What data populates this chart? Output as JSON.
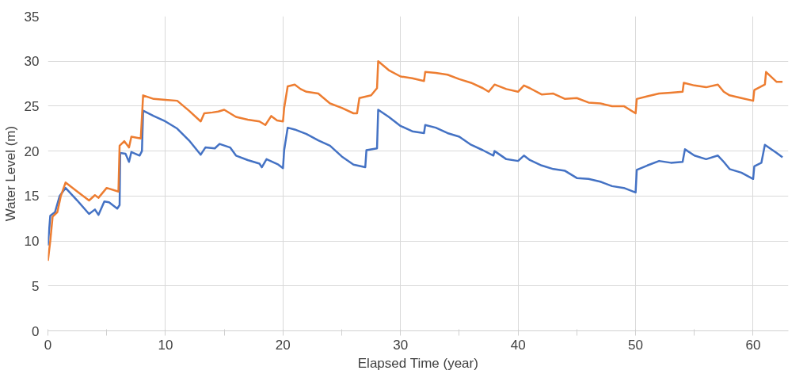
{
  "chart_data": {
    "type": "line",
    "xlabel": "Elapsed Time (year)",
    "ylabel": "Water Level (m)",
    "xlim": [
      0,
      63
    ],
    "ylim": [
      0,
      35
    ],
    "xticks": [
      0,
      {
        "value": 5,
        "label": null
      },
      10,
      {
        "value": 15,
        "label": null
      },
      20,
      {
        "value": 25,
        "label": null
      },
      30,
      {
        "value": 35,
        "label": null
      },
      40,
      {
        "value": 45,
        "label": null
      },
      50,
      {
        "value": 55,
        "label": null
      },
      60
    ],
    "yticks": [
      0,
      5,
      10,
      15,
      20,
      25,
      30,
      35
    ],
    "grid": true,
    "marker": "none",
    "line_style": "solid",
    "series": [
      {
        "color": "#4472c4",
        "x": [
          0,
          0.2,
          0.6,
          1.0,
          1.5,
          2.5,
          3.5,
          4,
          4.3,
          4.8,
          5.2,
          5.9,
          6.1,
          6.15,
          6.6,
          6.9,
          7.1,
          7.8,
          8.0,
          8.1,
          9,
          10,
          11,
          12,
          13,
          13.4,
          14.2,
          14.6,
          15.5,
          16,
          17,
          18,
          18.2,
          18.6,
          19.6,
          20,
          20.1,
          20.4,
          21,
          22,
          23,
          24,
          25,
          26,
          27,
          27.1,
          28,
          28.1,
          29,
          30,
          31,
          32,
          32.1,
          33,
          34,
          35,
          36,
          37,
          37.9,
          38,
          39,
          40,
          40.5,
          41,
          42,
          43,
          44,
          45,
          46,
          47,
          48,
          49,
          50,
          50.1,
          51,
          52,
          53,
          54,
          54.2,
          55,
          56,
          57,
          57.5,
          58,
          59,
          60,
          60.1,
          60.7,
          61,
          62,
          62.5
        ],
        "values": [
          9.5,
          12.8,
          13.2,
          15,
          15.9,
          14.5,
          13.0,
          13.5,
          12.9,
          14.4,
          14.3,
          13.6,
          14.0,
          19.8,
          19.7,
          18.8,
          19.9,
          19.5,
          20.0,
          24.5,
          23.9,
          23.3,
          22.5,
          21.2,
          19.6,
          20.4,
          20.3,
          20.8,
          20.4,
          19.5,
          19,
          18.6,
          18.2,
          19.1,
          18.5,
          18.1,
          20.1,
          22.6,
          22.4,
          21.9,
          21.2,
          20.6,
          19.4,
          18.5,
          18.2,
          20.1,
          20.3,
          24.6,
          23.8,
          22.8,
          22.2,
          22,
          22.9,
          22.6,
          22,
          21.6,
          20.7,
          20.1,
          19.5,
          20,
          19.1,
          18.9,
          19.5,
          19.0,
          18.4,
          18,
          17.8,
          17,
          16.9,
          16.6,
          16.1,
          15.9,
          15.4,
          17.9,
          18.4,
          18.9,
          18.7,
          18.8,
          20.2,
          19.5,
          19.1,
          19.5,
          18.8,
          18.0,
          17.6,
          16.9,
          18.3,
          18.7,
          20.7,
          19.8,
          19.3
        ]
      },
      {
        "color": "#ed7d31",
        "x": [
          0,
          0.2,
          0.4,
          0.8,
          1.1,
          1.5,
          2.5,
          3.5,
          4,
          4.3,
          5,
          6,
          6.1,
          6.5,
          6.9,
          7.1,
          7.9,
          8.1,
          9,
          10,
          11,
          12,
          13,
          13.3,
          14,
          14.5,
          15,
          16,
          17,
          18,
          18.5,
          19,
          19.5,
          20,
          20.1,
          20.4,
          21,
          21.5,
          22,
          23,
          24,
          25,
          26,
          26.3,
          26.5,
          27.5,
          28,
          28.1,
          29,
          30,
          31,
          32,
          32.1,
          33,
          34,
          35,
          36,
          37,
          37.5,
          38,
          39,
          40,
          40.5,
          41,
          42,
          43,
          44,
          45,
          46,
          47,
          48,
          49,
          50,
          50.1,
          51,
          52,
          53,
          54,
          54.1,
          55,
          56,
          57,
          57.5,
          58,
          59,
          60,
          60.1,
          61,
          61.1,
          62,
          62.5
        ],
        "values": [
          7.8,
          10,
          12.7,
          13.2,
          15,
          16.5,
          15.5,
          14.5,
          15.1,
          14.8,
          15.9,
          15.5,
          20.6,
          21.1,
          20.4,
          21.6,
          21.4,
          26.2,
          25.8,
          25.7,
          25.6,
          24.5,
          23.3,
          24.2,
          24.3,
          24.4,
          24.6,
          23.8,
          23.5,
          23.3,
          22.9,
          23.9,
          23.4,
          23.3,
          24.8,
          27.2,
          27.4,
          26.9,
          26.6,
          26.4,
          25.3,
          24.8,
          24.2,
          24.2,
          25.9,
          26.2,
          27,
          30,
          29,
          28.3,
          28.1,
          27.8,
          28.8,
          28.7,
          28.5,
          28.0,
          27.6,
          27.0,
          26.6,
          27.4,
          26.9,
          26.6,
          27.3,
          27.0,
          26.3,
          26.4,
          25.8,
          25.9,
          25.4,
          25.3,
          25,
          25,
          24.2,
          25.8,
          26.1,
          26.4,
          26.5,
          26.6,
          27.6,
          27.3,
          27.1,
          27.4,
          26.6,
          26.2,
          25.9,
          25.6,
          26.8,
          27.4,
          28.8,
          27.7,
          27.7
        ]
      }
    ]
  }
}
